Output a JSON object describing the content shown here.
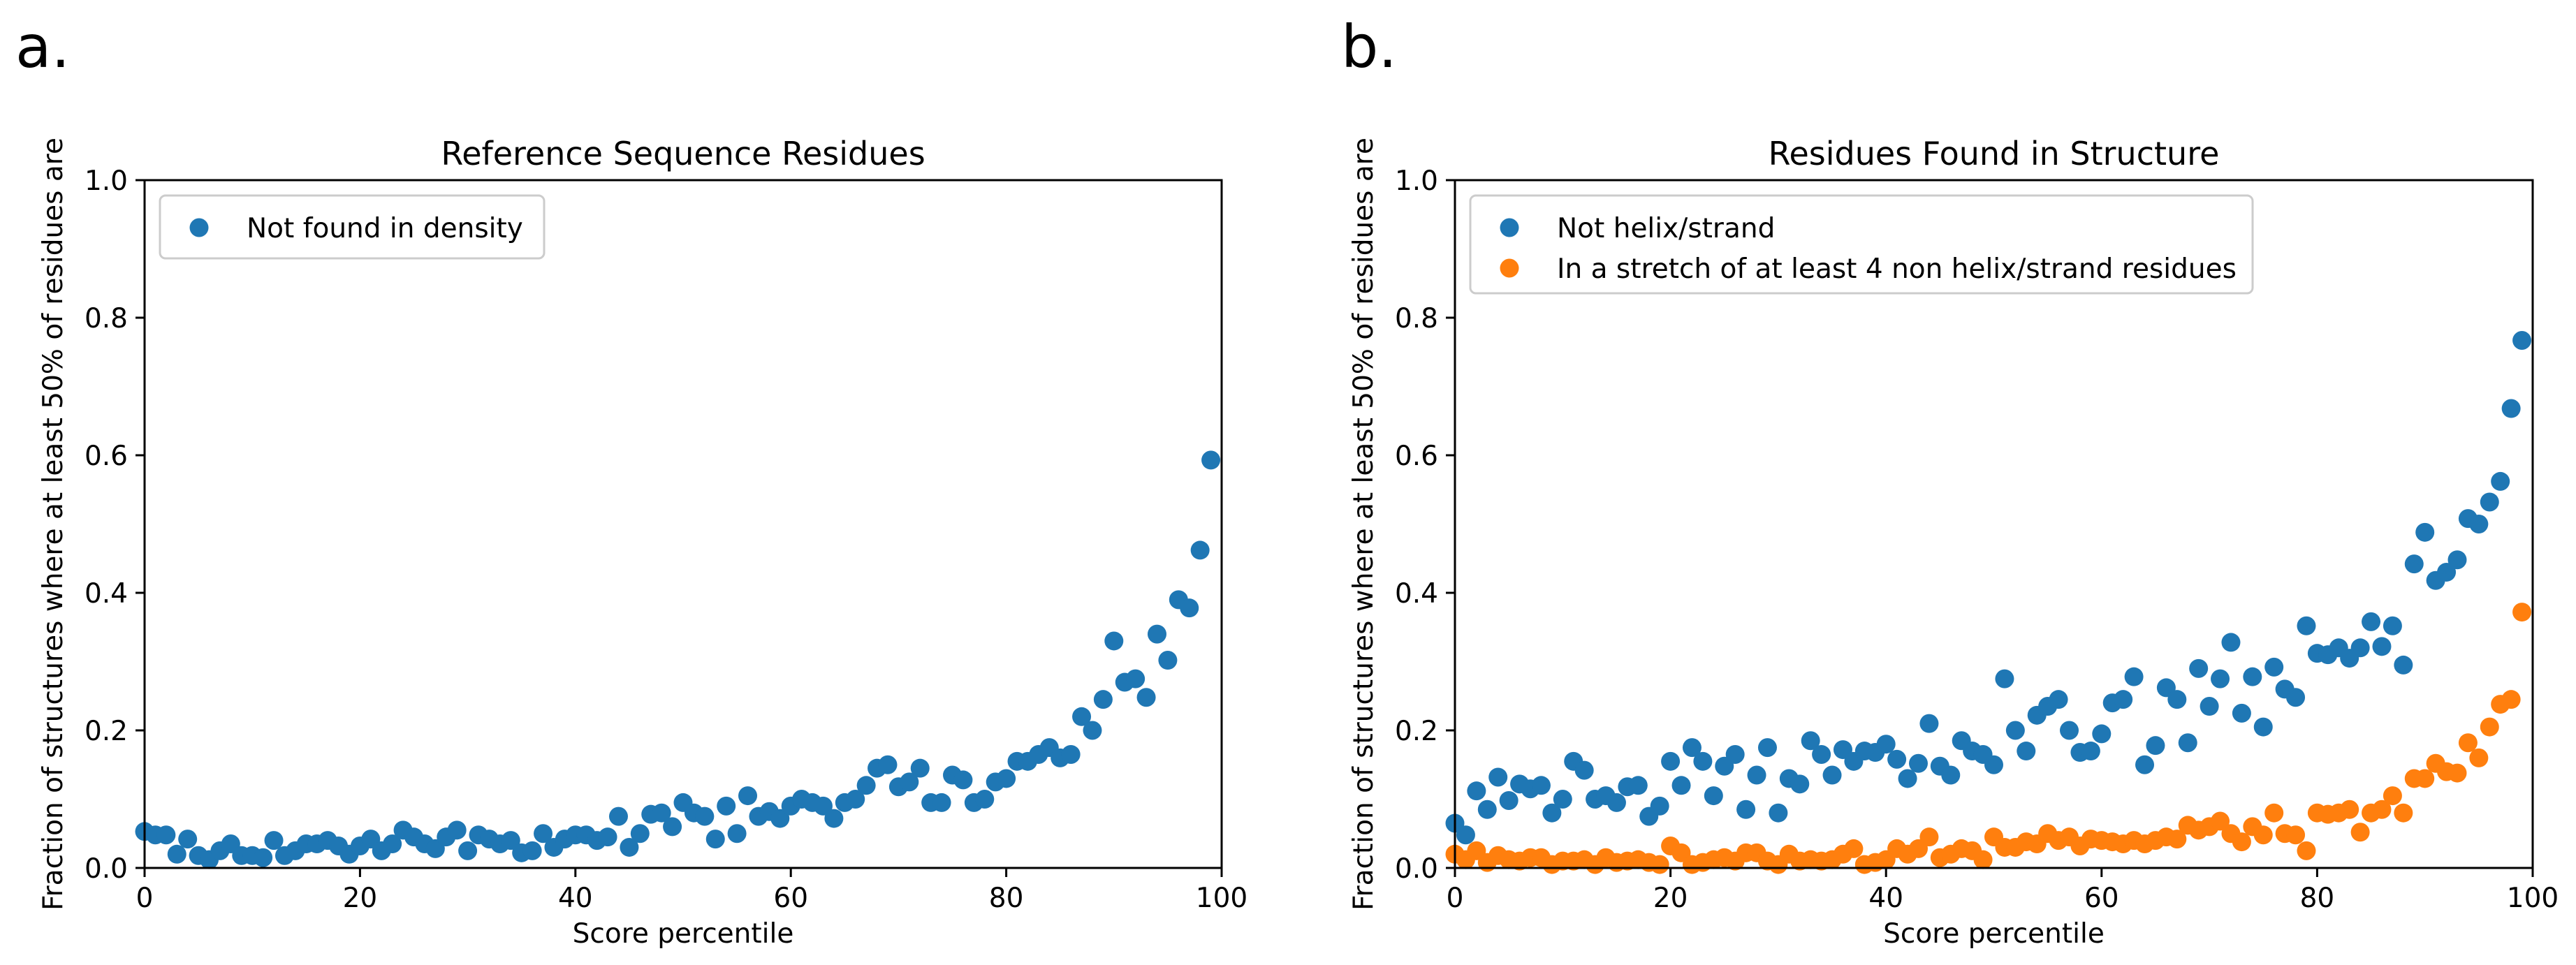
{
  "chart_data": [
    {
      "panel_label": "a.",
      "type": "scatter",
      "title": "Reference Sequence Residues",
      "xlabel": "Score percentile",
      "ylabel": "Fraction of structures where at least 50% of residues are",
      "xlim": [
        0,
        100
      ],
      "ylim": [
        0,
        1.0
      ],
      "xticks": [
        "0",
        "20",
        "40",
        "60",
        "80",
        "100"
      ],
      "yticks": [
        "0.0",
        "0.2",
        "0.4",
        "0.6",
        "0.8",
        "1.0"
      ],
      "legend_position": "upper-left",
      "series": [
        {
          "name": "Not found in density",
          "color": "#1f77b4",
          "y": [
            0.053,
            0.048,
            0.048,
            0.02,
            0.042,
            0.018,
            0.012,
            0.025,
            0.035,
            0.018,
            0.018,
            0.015,
            0.04,
            0.018,
            0.025,
            0.035,
            0.035,
            0.04,
            0.032,
            0.02,
            0.032,
            0.042,
            0.025,
            0.035,
            0.055,
            0.045,
            0.035,
            0.028,
            0.045,
            0.055,
            0.025,
            0.048,
            0.042,
            0.035,
            0.04,
            0.022,
            0.025,
            0.05,
            0.03,
            0.042,
            0.048,
            0.048,
            0.04,
            0.045,
            0.075,
            0.03,
            0.05,
            0.078,
            0.08,
            0.06,
            0.095,
            0.08,
            0.075,
            0.042,
            0.09,
            0.05,
            0.105,
            0.075,
            0.082,
            0.072,
            0.09,
            0.1,
            0.095,
            0.09,
            0.072,
            0.095,
            0.1,
            0.12,
            0.145,
            0.15,
            0.118,
            0.125,
            0.145,
            0.095,
            0.095,
            0.135,
            0.128,
            0.095,
            0.1,
            0.125,
            0.13,
            0.155,
            0.155,
            0.165,
            0.175,
            0.16,
            0.165,
            0.22,
            0.2,
            0.245,
            0.33,
            0.27,
            0.275,
            0.248,
            0.34,
            0.302,
            0.39,
            0.378,
            0.462,
            0.593
          ]
        }
      ]
    },
    {
      "panel_label": "b.",
      "type": "scatter",
      "title": "Residues Found in Structure",
      "xlabel": "Score percentile",
      "ylabel": "Fraction of structures where at least 50% of residues are",
      "xlim": [
        0,
        100
      ],
      "ylim": [
        0,
        1.0
      ],
      "xticks": [
        "0",
        "20",
        "40",
        "60",
        "80",
        "100"
      ],
      "yticks": [
        "0.0",
        "0.2",
        "0.4",
        "0.6",
        "0.8",
        "1.0"
      ],
      "legend_position": "upper-left",
      "series": [
        {
          "name": "Not helix/strand",
          "color": "#1f77b4",
          "y": [
            0.065,
            0.048,
            0.112,
            0.085,
            0.132,
            0.098,
            0.122,
            0.115,
            0.12,
            0.08,
            0.1,
            0.155,
            0.142,
            0.1,
            0.105,
            0.095,
            0.118,
            0.12,
            0.075,
            0.09,
            0.155,
            0.12,
            0.175,
            0.155,
            0.105,
            0.148,
            0.165,
            0.085,
            0.135,
            0.175,
            0.08,
            0.13,
            0.122,
            0.185,
            0.165,
            0.135,
            0.172,
            0.155,
            0.17,
            0.168,
            0.18,
            0.158,
            0.13,
            0.152,
            0.21,
            0.148,
            0.135,
            0.185,
            0.17,
            0.165,
            0.15,
            0.275,
            0.2,
            0.17,
            0.222,
            0.235,
            0.245,
            0.2,
            0.168,
            0.17,
            0.195,
            0.24,
            0.245,
            0.278,
            0.15,
            0.178,
            0.262,
            0.245,
            0.182,
            0.29,
            0.235,
            0.275,
            0.328,
            0.225,
            0.278,
            0.205,
            0.292,
            0.26,
            0.248,
            0.352,
            0.312,
            0.31,
            0.32,
            0.305,
            0.32,
            0.358,
            0.322,
            0.352,
            0.295,
            0.442,
            0.488,
            0.418,
            0.43,
            0.448,
            0.508,
            0.5,
            0.532,
            0.562,
            0.668,
            0.767
          ]
        },
        {
          "name": "In a stretch of at least 4 non helix/strand residues",
          "color": "#ff7f0e",
          "y": [
            0.02,
            0.012,
            0.025,
            0.008,
            0.018,
            0.012,
            0.01,
            0.015,
            0.015,
            0.005,
            0.01,
            0.01,
            0.012,
            0.005,
            0.015,
            0.008,
            0.01,
            0.012,
            0.008,
            0.005,
            0.032,
            0.022,
            0.005,
            0.008,
            0.012,
            0.015,
            0.01,
            0.022,
            0.022,
            0.01,
            0.005,
            0.02,
            0.01,
            0.012,
            0.01,
            0.012,
            0.02,
            0.028,
            0.005,
            0.008,
            0.012,
            0.028,
            0.02,
            0.028,
            0.045,
            0.015,
            0.02,
            0.028,
            0.025,
            0.012,
            0.045,
            0.03,
            0.03,
            0.038,
            0.035,
            0.05,
            0.04,
            0.045,
            0.032,
            0.042,
            0.04,
            0.038,
            0.035,
            0.04,
            0.035,
            0.04,
            0.045,
            0.042,
            0.062,
            0.055,
            0.06,
            0.068,
            0.05,
            0.038,
            0.06,
            0.048,
            0.08,
            0.05,
            0.048,
            0.025,
            0.08,
            0.078,
            0.08,
            0.085,
            0.052,
            0.08,
            0.085,
            0.105,
            0.08,
            0.13,
            0.13,
            0.152,
            0.14,
            0.138,
            0.182,
            0.16,
            0.205,
            0.238,
            0.245,
            0.372
          ]
        }
      ]
    }
  ]
}
